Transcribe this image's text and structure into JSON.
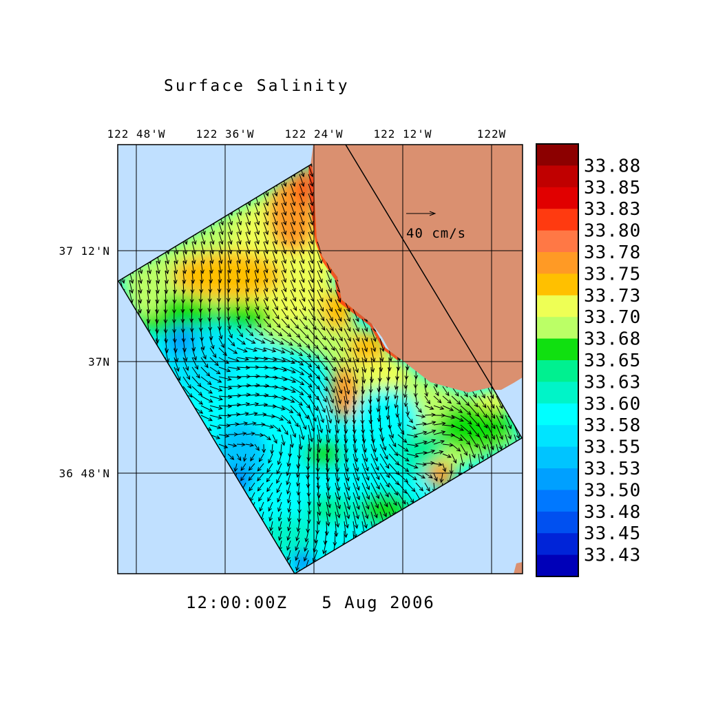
{
  "title": "Surface Salinity",
  "timestamp": "12:00:00Z   5 Aug 2006",
  "longitude_labels": [
    "122 48'W",
    "122 36'W",
    "122 24'W",
    "122 12'W",
    "122W"
  ],
  "latitude_labels": [
    "37 12'N",
    "37N",
    "36 48'N"
  ],
  "vector_reference": {
    "label": "40 cm/s",
    "speed_cm_s": 40
  },
  "colorbar": {
    "labels": [
      "33.88",
      "33.85",
      "33.83",
      "33.80",
      "33.78",
      "33.75",
      "33.73",
      "33.70",
      "33.68",
      "33.65",
      "33.63",
      "33.60",
      "33.58",
      "33.55",
      "33.53",
      "33.50",
      "33.48",
      "33.45",
      "33.43"
    ],
    "colors": [
      "#8c0000",
      "#c00000",
      "#e10000",
      "#ff3a10",
      "#ff7845",
      "#ff9a25",
      "#ffc000",
      "#eeff55",
      "#bbff66",
      "#10e010",
      "#00f090",
      "#00f4c8",
      "#00ffff",
      "#00e4ff",
      "#00c4ff",
      "#00a0ff",
      "#0078ff",
      "#0050f0",
      "#0024d8",
      "#0000b8"
    ]
  },
  "colors": {
    "ocean": "#c0e0ff",
    "land": "#da9070",
    "grid": "#000000"
  }
}
